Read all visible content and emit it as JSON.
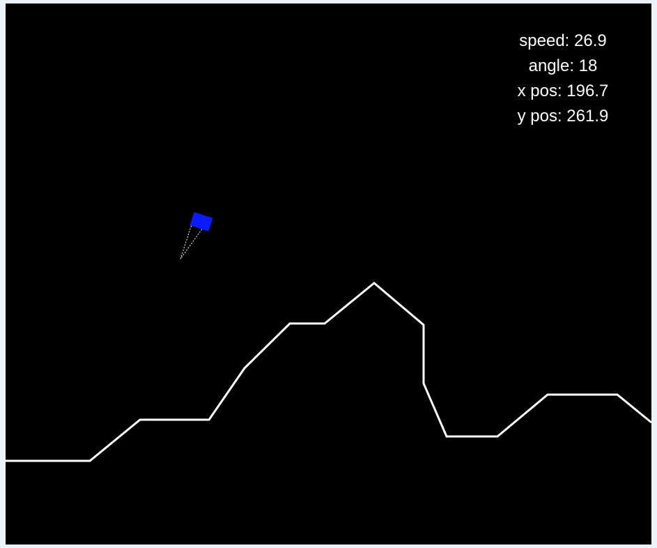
{
  "game": {
    "hud": {
      "speed": "speed: 26.9",
      "angle": "angle: 18",
      "x_pos": "x pos: 196.7",
      "y_pos": "y pos: 261.9"
    },
    "colors": {
      "background": "#000000",
      "terrain": "#ffffff",
      "lander": "#0a1cff",
      "thrust": "#ffffff",
      "hud_text": "#ffffff"
    },
    "lander": {
      "angle_deg": 18,
      "thrust_visible": true
    }
  }
}
